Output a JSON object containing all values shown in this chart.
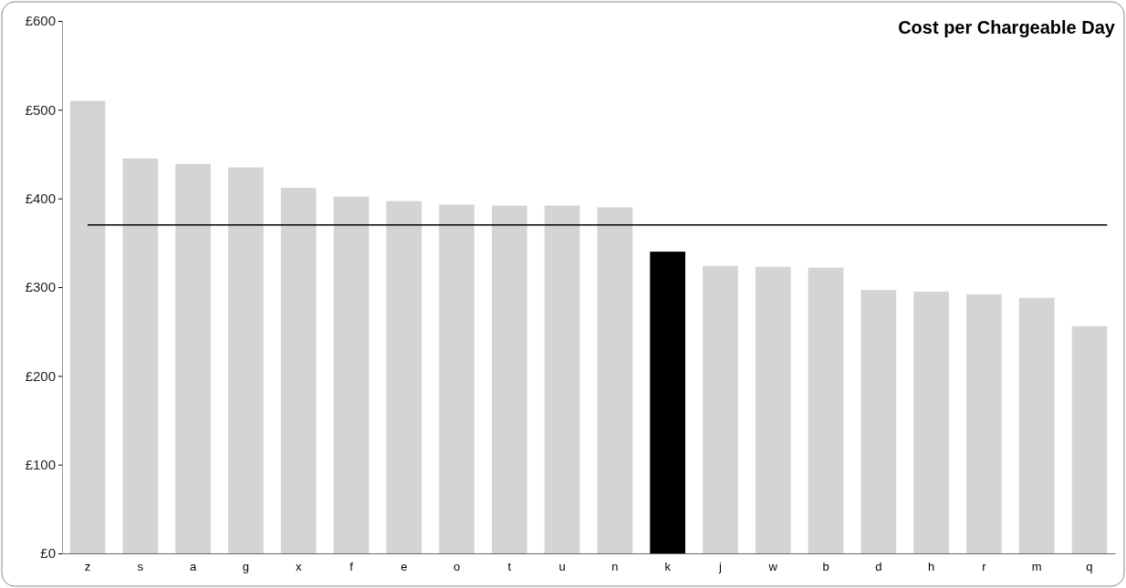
{
  "chart_data": {
    "type": "bar",
    "title": "Cost per Chargeable Day",
    "categories": [
      "z",
      "s",
      "a",
      "g",
      "x",
      "f",
      "e",
      "o",
      "t",
      "u",
      "n",
      "k",
      "j",
      "w",
      "b",
      "d",
      "h",
      "r",
      "m",
      "q"
    ],
    "values": [
      510,
      445,
      439,
      435,
      412,
      402,
      397,
      393,
      392,
      392,
      390,
      340,
      324,
      323,
      322,
      297,
      295,
      292,
      288,
      256
    ],
    "colors": [
      "#d4d4d4",
      "#d4d4d4",
      "#d4d4d4",
      "#d4d4d4",
      "#d4d4d4",
      "#d4d4d4",
      "#d4d4d4",
      "#d4d4d4",
      "#d4d4d4",
      "#d4d4d4",
      "#d4d4d4",
      "#000000",
      "#d4d4d4",
      "#d4d4d4",
      "#d4d4d4",
      "#d4d4d4",
      "#d4d4d4",
      "#d4d4d4",
      "#d4d4d4",
      "#d4d4d4"
    ],
    "ylim": [
      0,
      600
    ],
    "yticks": [
      {
        "value": 0,
        "label": "£0"
      },
      {
        "value": 100,
        "label": "£100"
      },
      {
        "value": 200,
        "label": "£200"
      },
      {
        "value": 300,
        "label": "£300"
      },
      {
        "value": 400,
        "label": "£400"
      },
      {
        "value": 500,
        "label": "£500"
      },
      {
        "value": 600,
        "label": "£600"
      }
    ],
    "ref_lines": [
      {
        "axis": "y",
        "value": 370,
        "color": "#000000"
      }
    ],
    "grid": false
  }
}
